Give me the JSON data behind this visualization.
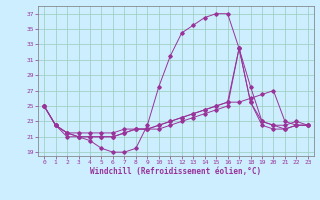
{
  "xlabel": "Windchill (Refroidissement éolien,°C)",
  "bg_color": "#cceeff",
  "grid_color": "#99ccbb",
  "line_color": "#993399",
  "xlim": [
    -0.5,
    23.5
  ],
  "ylim": [
    18.5,
    38.0
  ],
  "yticks": [
    19,
    21,
    23,
    25,
    27,
    29,
    31,
    33,
    35,
    37
  ],
  "xticks": [
    0,
    1,
    2,
    3,
    4,
    5,
    6,
    7,
    8,
    9,
    10,
    11,
    12,
    13,
    14,
    15,
    16,
    17,
    18,
    19,
    20,
    21,
    22,
    23
  ],
  "lines": [
    [
      25.0,
      22.5,
      21.0,
      21.0,
      20.5,
      19.5,
      19.0,
      19.0,
      19.5,
      22.5,
      27.5,
      31.5,
      34.5,
      35.5,
      36.5,
      37.0,
      37.0,
      32.5,
      27.5,
      23.0,
      22.5,
      22.5,
      23.0,
      22.5
    ],
    [
      25.0,
      22.5,
      21.5,
      21.5,
      21.5,
      21.5,
      21.5,
      22.0,
      22.0,
      22.0,
      22.5,
      23.0,
      23.5,
      24.0,
      24.5,
      25.0,
      25.5,
      25.5,
      26.0,
      26.5,
      27.0,
      23.0,
      22.5,
      22.5
    ],
    [
      25.0,
      22.5,
      21.5,
      21.0,
      21.0,
      21.0,
      21.0,
      21.5,
      22.0,
      22.0,
      22.0,
      22.5,
      23.0,
      23.5,
      24.0,
      24.5,
      25.0,
      32.5,
      25.5,
      23.0,
      22.5,
      22.0,
      22.5,
      22.5
    ],
    [
      25.0,
      22.5,
      21.5,
      21.0,
      21.0,
      21.0,
      21.0,
      21.5,
      22.0,
      22.0,
      22.5,
      23.0,
      23.5,
      24.0,
      24.5,
      25.0,
      25.5,
      32.5,
      25.5,
      22.5,
      22.0,
      22.0,
      22.5,
      22.5
    ]
  ]
}
